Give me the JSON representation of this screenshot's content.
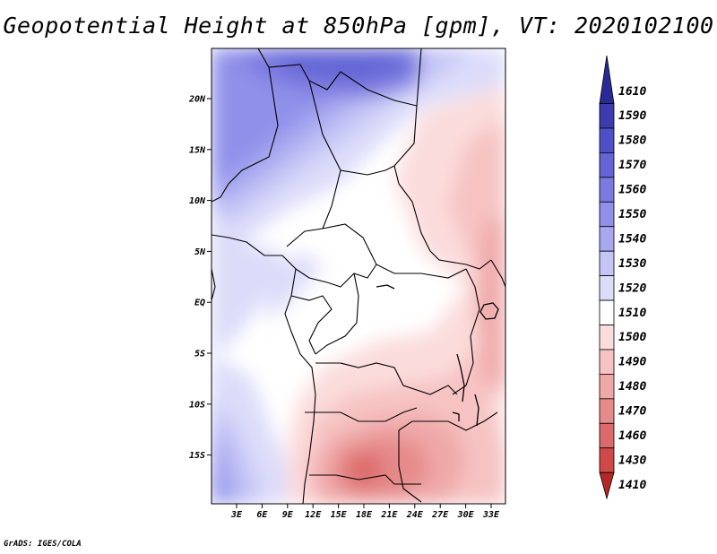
{
  "title": "Geopotential Height at 850hPa [gpm], VT: 2020102100",
  "credit": "GrADS: IGES/COLA",
  "map": {
    "lat_labels": [
      "20N",
      "15N",
      "10N",
      "5N",
      "EQ",
      "5S",
      "10S",
      "15S"
    ],
    "lon_labels": [
      "3E",
      "6E",
      "9E",
      "12E",
      "15E",
      "18E",
      "21E",
      "24E",
      "27E",
      "30E",
      "33E"
    ]
  },
  "colorbar": {
    "levels": [
      "1610",
      "1590",
      "1580",
      "1570",
      "1560",
      "1550",
      "1540",
      "1530",
      "1520",
      "1510",
      "1500",
      "1490",
      "1480",
      "1470",
      "1460",
      "1430",
      "1410"
    ],
    "colors": [
      "#2a2a96",
      "#3c3cb0",
      "#4f4fc8",
      "#6464d6",
      "#7a7ae0",
      "#9090ea",
      "#a8a8f0",
      "#c4c4f6",
      "#dcdcfa",
      "#ffffff",
      "#fbdcdc",
      "#f6c2c2",
      "#efa8a8",
      "#e68a8a",
      "#dc6a6a",
      "#d04848",
      "#b42828"
    ]
  }
}
